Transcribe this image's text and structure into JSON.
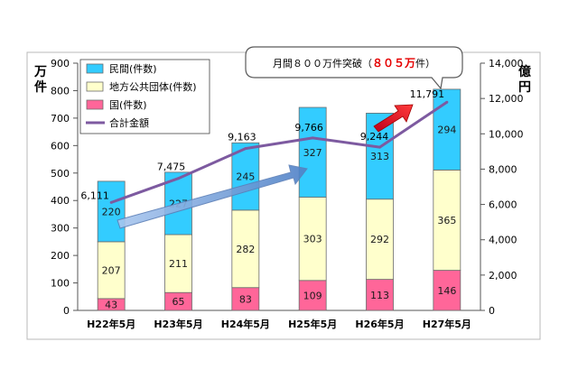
{
  "chart_data": {
    "type": "bar",
    "stacked": true,
    "categories": [
      "H22年5月",
      "H23年5月",
      "H24年5月",
      "H25年5月",
      "H26年5月",
      "H27年5月"
    ],
    "series": [
      {
        "name": "国(件数)",
        "values": [
          43,
          65,
          83,
          109,
          113,
          146
        ],
        "color": "#ff6699"
      },
      {
        "name": "地方公共団体(件数)",
        "values": [
          207,
          211,
          282,
          303,
          292,
          365
        ],
        "color": "#ffffcc"
      },
      {
        "name": "民間(件数)",
        "values": [
          220,
          227,
          245,
          327,
          313,
          294
        ],
        "color": "#33ccff"
      }
    ],
    "line_series": {
      "name": "合計金額",
      "values": [
        6111,
        7475,
        9163,
        9766,
        9244,
        11791
      ],
      "labels": [
        "6,111",
        "7,475",
        "9,163",
        "9,766",
        "9,244",
        "11,791"
      ],
      "color": "#7d5aa0"
    },
    "left_axis": {
      "label": "万\n件",
      "ylim": [
        0,
        900
      ],
      "ticks": [
        "0",
        "100",
        "200",
        "300",
        "400",
        "500",
        "600",
        "700",
        "800",
        "900"
      ]
    },
    "right_axis": {
      "label": "億\n円",
      "ylim": [
        0,
        14000
      ],
      "ticks": [
        "0",
        "2,000",
        "4,000",
        "6,000",
        "8,000",
        "10,000",
        "12,000",
        "14,000"
      ]
    },
    "legend": {
      "position": "top-left",
      "entries": [
        "民間(件数)",
        "地方公共団体(件数)",
        "国(件数)",
        "合計金額"
      ]
    },
    "callout": {
      "prefix": "月間８００万件突破（",
      "highlight": "８０５万",
      "suffix": "件）",
      "highlight_color": "#e60000"
    }
  }
}
